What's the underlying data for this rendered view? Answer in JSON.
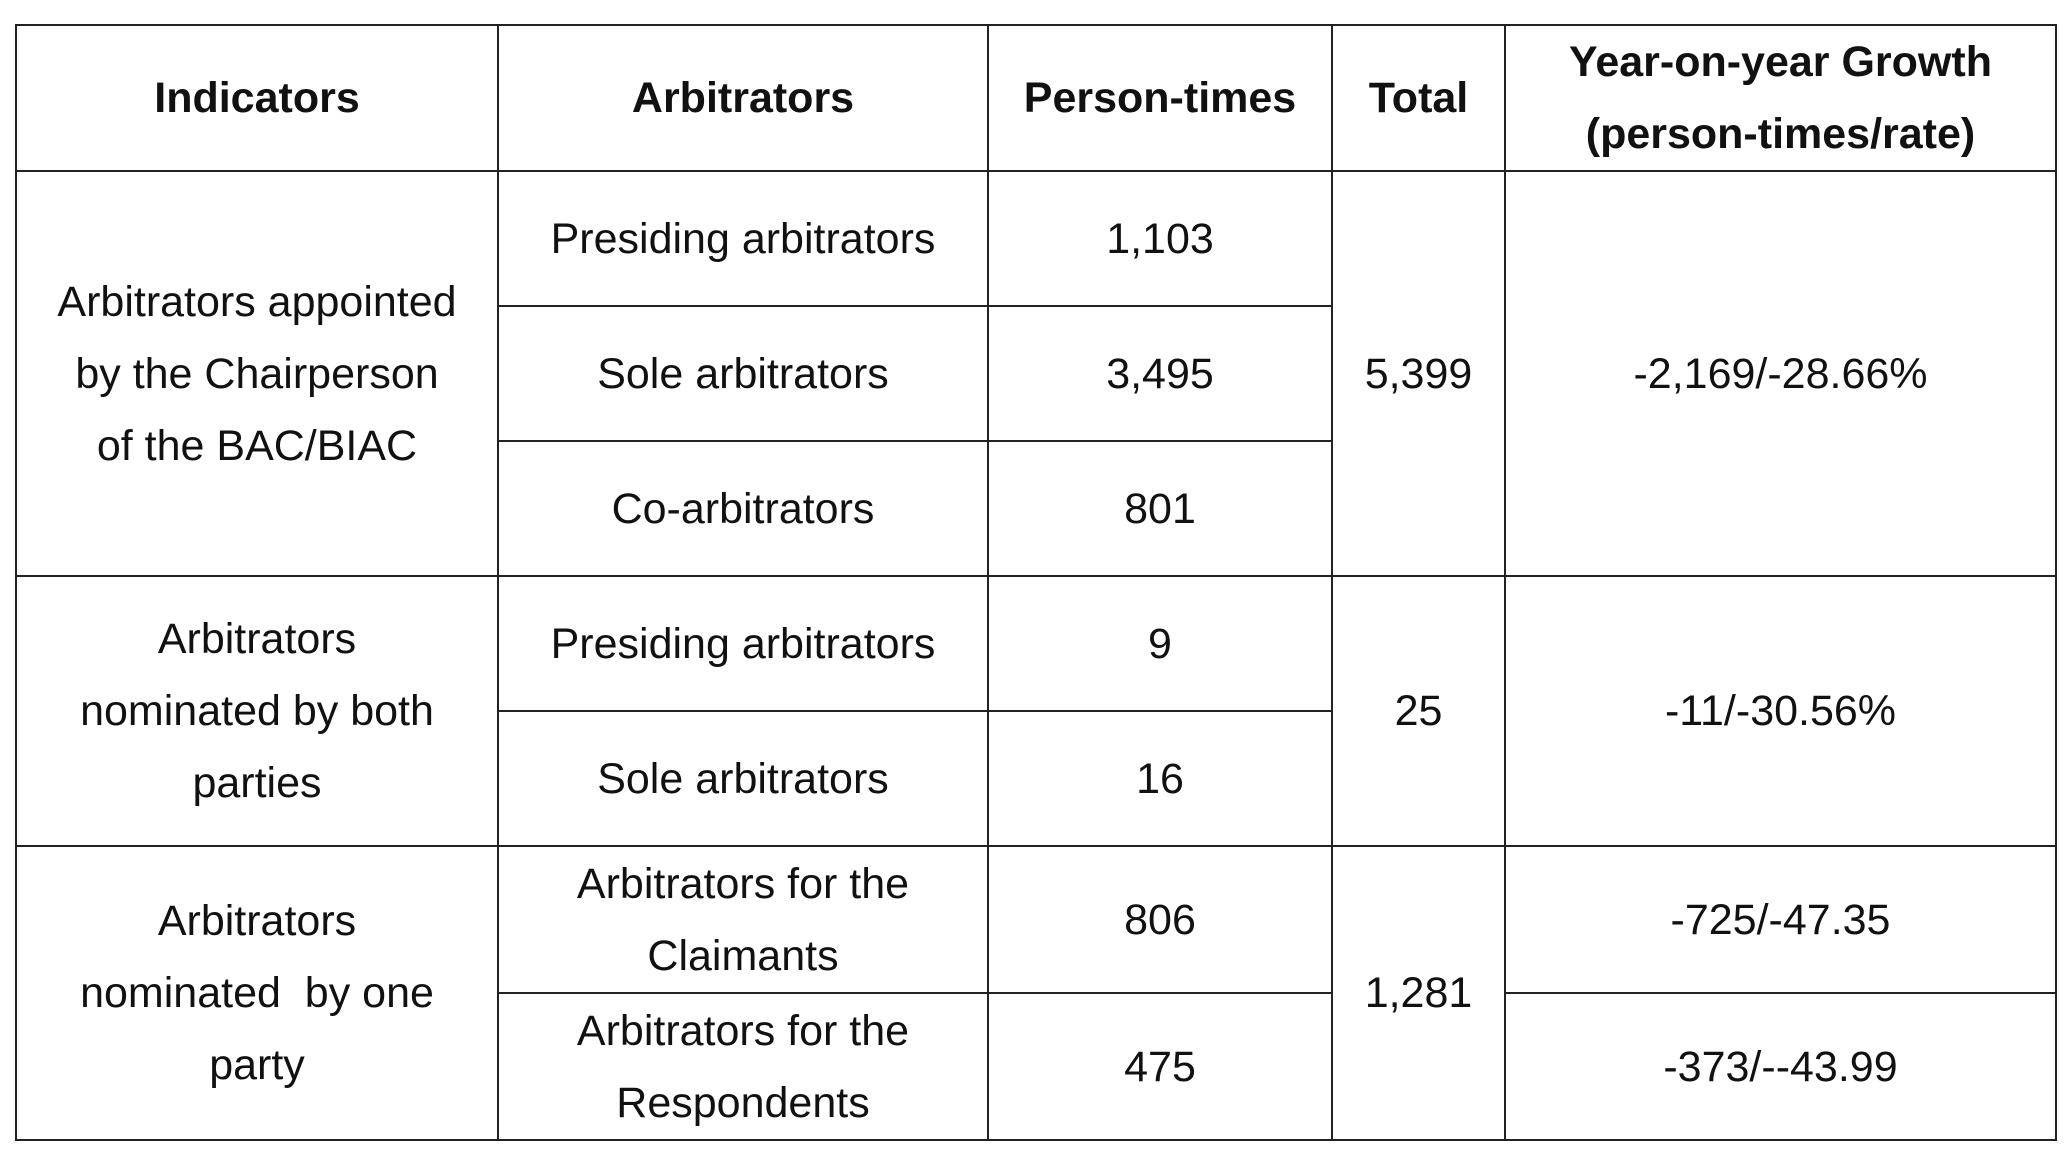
{
  "table": {
    "headers": {
      "indicators": "Indicators",
      "arbitrators": "Arbitrators",
      "person_times": "Person-times",
      "total": "Total",
      "growth_line1": "Year-on-year Growth",
      "growth_line2": "(person-times/rate)"
    },
    "groups": [
      {
        "indicator_lines": [
          "Arbitrators appointed",
          "by the Chairperson",
          "of the BAC/BIAC"
        ],
        "total": "5,399",
        "growth": "-2,169/-28.66%",
        "rows": [
          {
            "arbitrators_lines": [
              "Presiding arbitrators"
            ],
            "person_times": "1,103"
          },
          {
            "arbitrators_lines": [
              "Sole arbitrators"
            ],
            "person_times": "3,495"
          },
          {
            "arbitrators_lines": [
              "Co-arbitrators"
            ],
            "person_times": "801"
          }
        ]
      },
      {
        "indicator_lines": [
          "Arbitrators",
          "nominated by both",
          "parties"
        ],
        "total": "25",
        "growth": "-11/-30.56%",
        "rows": [
          {
            "arbitrators_lines": [
              "Presiding arbitrators"
            ],
            "person_times": "9"
          },
          {
            "arbitrators_lines": [
              "Sole arbitrators"
            ],
            "person_times": "16"
          }
        ]
      },
      {
        "indicator_lines": [
          "Arbitrators",
          "nominated  by one",
          "party"
        ],
        "total": "1,281",
        "rows": [
          {
            "arbitrators_lines": [
              "Arbitrators for the",
              "Claimants"
            ],
            "person_times": "806",
            "growth": "-725/-47.35"
          },
          {
            "arbitrators_lines": [
              "Arbitrators for the",
              "Respondents"
            ],
            "person_times": "475",
            "growth": "-373/--43.99"
          }
        ]
      }
    ]
  }
}
